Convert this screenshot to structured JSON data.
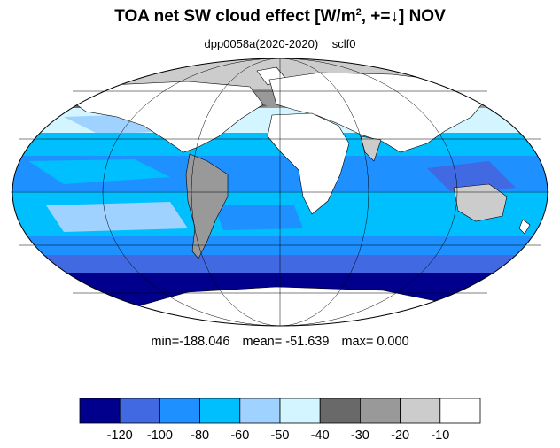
{
  "title": {
    "prefix": "TOA net SW cloud effect [W/m",
    "sup": "2",
    "suffix": ", +=↓]  NOV"
  },
  "subtitle": {
    "run": "dpp0058a(2020-2020)",
    "variable": "sclf0"
  },
  "stats": {
    "min": "min=-188.046",
    "mean": "mean= -51.639",
    "max": "max=   0.000"
  },
  "colorbar": {
    "colors": [
      "#00008c",
      "#4169e1",
      "#1e90ff",
      "#00bfff",
      "#a0d2ff",
      "#d2f5ff",
      "#696969",
      "#999999",
      "#cccccc",
      "#ffffff"
    ],
    "ticks": [
      "-120",
      "-100",
      "-80",
      "-60",
      "-50",
      "-40",
      "-30",
      "-20",
      "-10"
    ]
  },
  "map": {
    "projection": "mollweide",
    "land_color": "#ffffff",
    "grid_color": "#000000"
  }
}
